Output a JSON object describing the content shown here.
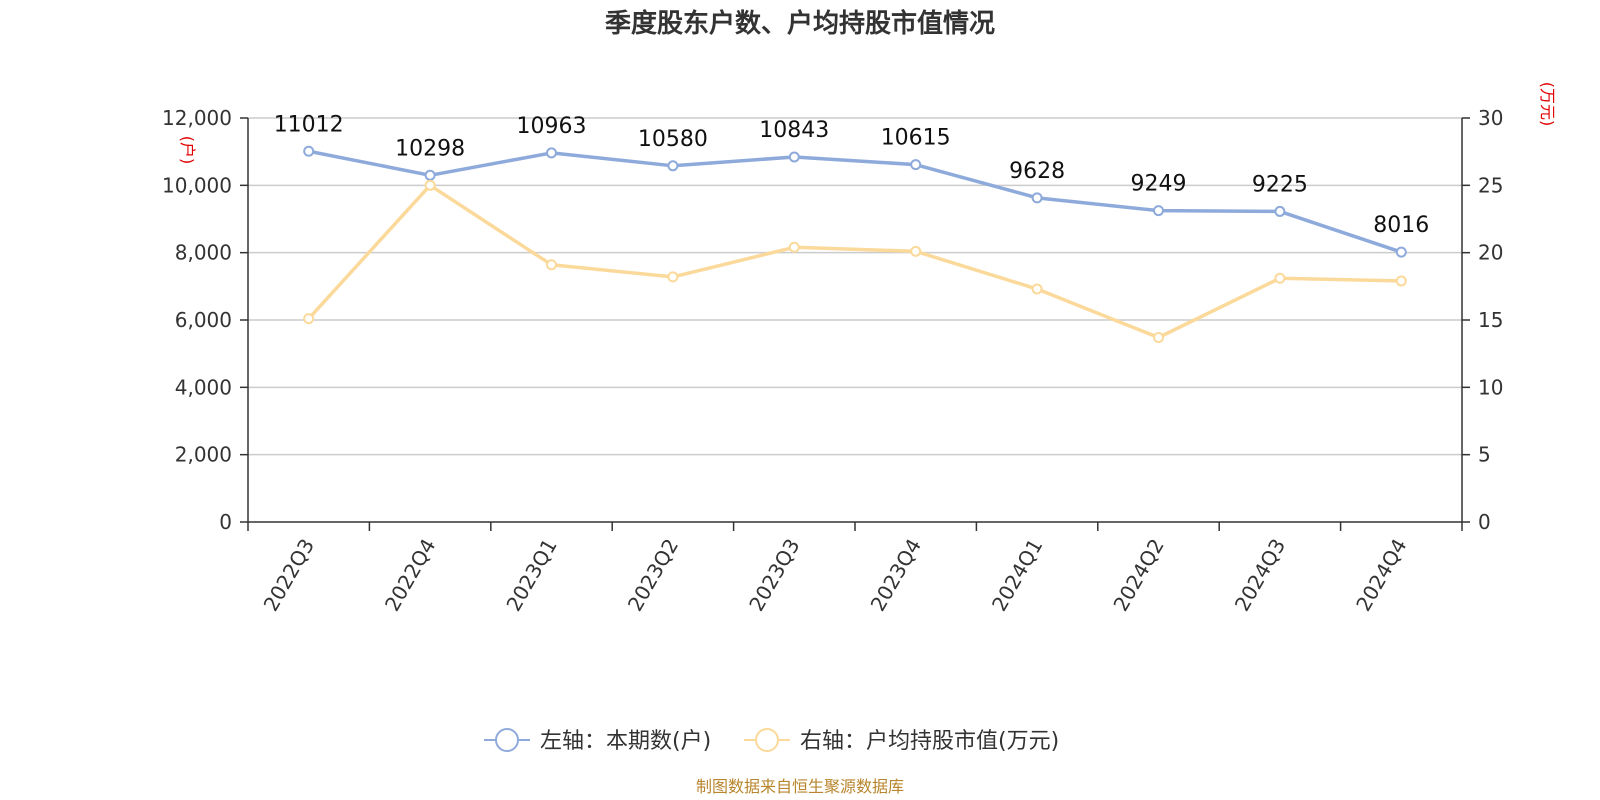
{
  "chart_data": {
    "type": "line",
    "title": "季度股东户数、户均持股市值情况",
    "categories": [
      "2022Q3",
      "2022Q4",
      "2023Q1",
      "2023Q2",
      "2023Q3",
      "2023Q4",
      "2024Q1",
      "2024Q2",
      "2024Q3",
      "2024Q4"
    ],
    "y_left": {
      "unit": "(户)",
      "ylim": [
        0,
        12000
      ],
      "ticks": [
        "0",
        "2,000",
        "4,000",
        "6,000",
        "8,000",
        "10,000",
        "12,000"
      ]
    },
    "y_right": {
      "unit": "(万元)",
      "ylim": [
        0,
        30
      ],
      "ticks": [
        "0",
        "5",
        "10",
        "15",
        "20",
        "25",
        "30"
      ]
    },
    "series": [
      {
        "name": "左轴：本期数(户)",
        "axis": "left",
        "color": "#8eaadb",
        "values": [
          11012,
          10298,
          10963,
          10580,
          10843,
          10615,
          9628,
          9249,
          9225,
          8016
        ],
        "labels": [
          "11012",
          "10298",
          "10963",
          "10580",
          "10843",
          "10615",
          "9628",
          "9249",
          "9225",
          "8016"
        ]
      },
      {
        "name": "右轴：户均持股市值(万元)",
        "axis": "right",
        "color": "#fbd99a",
        "values": [
          15.1,
          25.0,
          19.1,
          18.2,
          20.4,
          20.1,
          17.3,
          13.7,
          18.1,
          17.9
        ]
      }
    ],
    "grid": true,
    "legend": "bottom-center"
  },
  "source": "制图数据来自恒生聚源数据库"
}
